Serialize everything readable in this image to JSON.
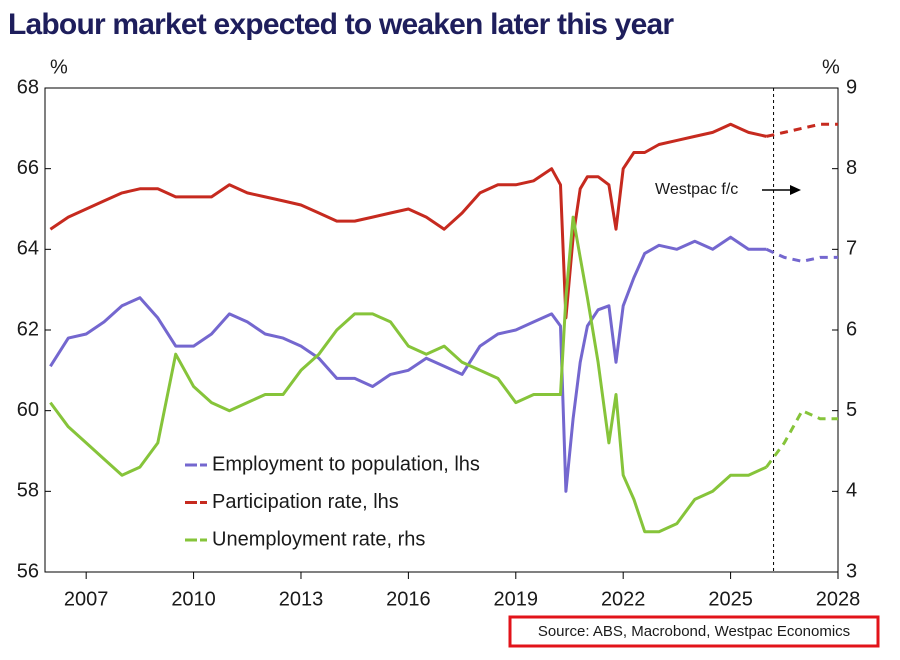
{
  "chart_data": {
    "type": "line",
    "title": "Labour market expected to weaken later this year",
    "y_unit": "%",
    "y2_unit": "%",
    "annotation": "Westpac f/c",
    "source": "Source: ABS, Macrobond, Westpac Economics",
    "forecast_start": 2026.2,
    "xlim": [
      2005.85,
      2028
    ],
    "xticks": [
      2007,
      2010,
      2013,
      2016,
      2019,
      2022,
      2025,
      2028
    ],
    "ylim": [
      56,
      68
    ],
    "yticks": [
      56,
      58,
      60,
      62,
      64,
      66,
      68
    ],
    "y2lim": [
      3,
      9
    ],
    "y2ticks": [
      3,
      4,
      5,
      6,
      7,
      8,
      9
    ],
    "legend": "center-left",
    "series": [
      {
        "name": "Employment to population, lhs",
        "color": "#7467cf",
        "axis": "y",
        "x": [
          2006.0,
          2006.5,
          2007.0,
          2007.5,
          2008.0,
          2008.5,
          2009.0,
          2009.5,
          2010.0,
          2010.5,
          2011.0,
          2011.5,
          2012.0,
          2012.5,
          2013.0,
          2013.5,
          2014.0,
          2014.5,
          2015.0,
          2015.5,
          2016.0,
          2016.5,
          2017.0,
          2017.5,
          2018.0,
          2018.5,
          2019.0,
          2019.5,
          2020.0,
          2020.25,
          2020.4,
          2020.6,
          2020.8,
          2021.0,
          2021.3,
          2021.6,
          2021.8,
          2022.0,
          2022.3,
          2022.6,
          2023.0,
          2023.5,
          2024.0,
          2024.5,
          2025.0,
          2025.5,
          2026.0
        ],
        "values": [
          61.1,
          61.8,
          61.9,
          62.2,
          62.6,
          62.8,
          62.3,
          61.6,
          61.6,
          61.9,
          62.4,
          62.2,
          61.9,
          61.8,
          61.6,
          61.3,
          60.8,
          60.8,
          60.6,
          60.9,
          61.0,
          61.3,
          61.1,
          60.9,
          61.6,
          61.9,
          62.0,
          62.2,
          62.4,
          62.1,
          58.0,
          59.8,
          61.2,
          62.1,
          62.5,
          62.6,
          61.2,
          62.6,
          63.3,
          63.9,
          64.1,
          64.0,
          64.2,
          64.0,
          64.3,
          64.0,
          64.0
        ],
        "forecast_x": [
          2026.0,
          2026.5,
          2027.0,
          2027.5,
          2028.0
        ],
        "forecast_values": [
          64.0,
          63.8,
          63.7,
          63.8,
          63.8
        ]
      },
      {
        "name": "Participation rate, lhs",
        "color": "#c62a1f",
        "axis": "y",
        "x": [
          2006.0,
          2006.5,
          2007.0,
          2007.5,
          2008.0,
          2008.5,
          2009.0,
          2009.5,
          2010.0,
          2010.5,
          2011.0,
          2011.5,
          2012.0,
          2012.5,
          2013.0,
          2013.5,
          2014.0,
          2014.5,
          2015.0,
          2015.5,
          2016.0,
          2016.5,
          2017.0,
          2017.5,
          2018.0,
          2018.5,
          2019.0,
          2019.5,
          2020.0,
          2020.25,
          2020.4,
          2020.6,
          2020.8,
          2021.0,
          2021.3,
          2021.6,
          2021.8,
          2022.0,
          2022.3,
          2022.6,
          2023.0,
          2023.5,
          2024.0,
          2024.5,
          2025.0,
          2025.5,
          2026.0
        ],
        "values": [
          64.5,
          64.8,
          65.0,
          65.2,
          65.4,
          65.5,
          65.5,
          65.3,
          65.3,
          65.3,
          65.6,
          65.4,
          65.3,
          65.2,
          65.1,
          64.9,
          64.7,
          64.7,
          64.8,
          64.9,
          65.0,
          64.8,
          64.5,
          64.9,
          65.4,
          65.6,
          65.6,
          65.7,
          66.0,
          65.6,
          62.3,
          64.3,
          65.5,
          65.8,
          65.8,
          65.6,
          64.5,
          66.0,
          66.4,
          66.4,
          66.6,
          66.7,
          66.8,
          66.9,
          67.1,
          66.9,
          66.8
        ],
        "forecast_x": [
          2026.0,
          2026.5,
          2027.0,
          2027.5,
          2028.0
        ],
        "forecast_values": [
          66.8,
          66.9,
          67.0,
          67.1,
          67.1
        ]
      },
      {
        "name": "Unemployment rate, rhs",
        "color": "#86c43a",
        "axis": "y2",
        "x": [
          2006.0,
          2006.5,
          2007.0,
          2007.5,
          2008.0,
          2008.5,
          2009.0,
          2009.5,
          2010.0,
          2010.5,
          2011.0,
          2011.5,
          2012.0,
          2012.5,
          2013.0,
          2013.5,
          2014.0,
          2014.5,
          2015.0,
          2015.5,
          2016.0,
          2016.5,
          2017.0,
          2017.5,
          2018.0,
          2018.5,
          2019.0,
          2019.5,
          2020.0,
          2020.25,
          2020.4,
          2020.6,
          2020.8,
          2021.0,
          2021.3,
          2021.6,
          2021.8,
          2022.0,
          2022.3,
          2022.6,
          2023.0,
          2023.5,
          2024.0,
          2024.5,
          2025.0,
          2025.5,
          2026.0
        ],
        "values": [
          5.1,
          4.8,
          4.6,
          4.4,
          4.2,
          4.3,
          4.6,
          5.7,
          5.3,
          5.1,
          5.0,
          5.1,
          5.2,
          5.2,
          5.5,
          5.7,
          6.0,
          6.2,
          6.2,
          6.1,
          5.8,
          5.7,
          5.8,
          5.6,
          5.5,
          5.4,
          5.1,
          5.2,
          5.2,
          5.2,
          6.4,
          7.4,
          6.9,
          6.4,
          5.6,
          4.6,
          5.2,
          4.2,
          3.9,
          3.5,
          3.5,
          3.6,
          3.9,
          4.0,
          4.2,
          4.2,
          4.3
        ],
        "forecast_x": [
          2026.0,
          2026.5,
          2027.0,
          2027.5,
          2028.0
        ],
        "forecast_values": [
          4.3,
          4.6,
          5.0,
          4.9,
          4.9
        ]
      }
    ]
  }
}
